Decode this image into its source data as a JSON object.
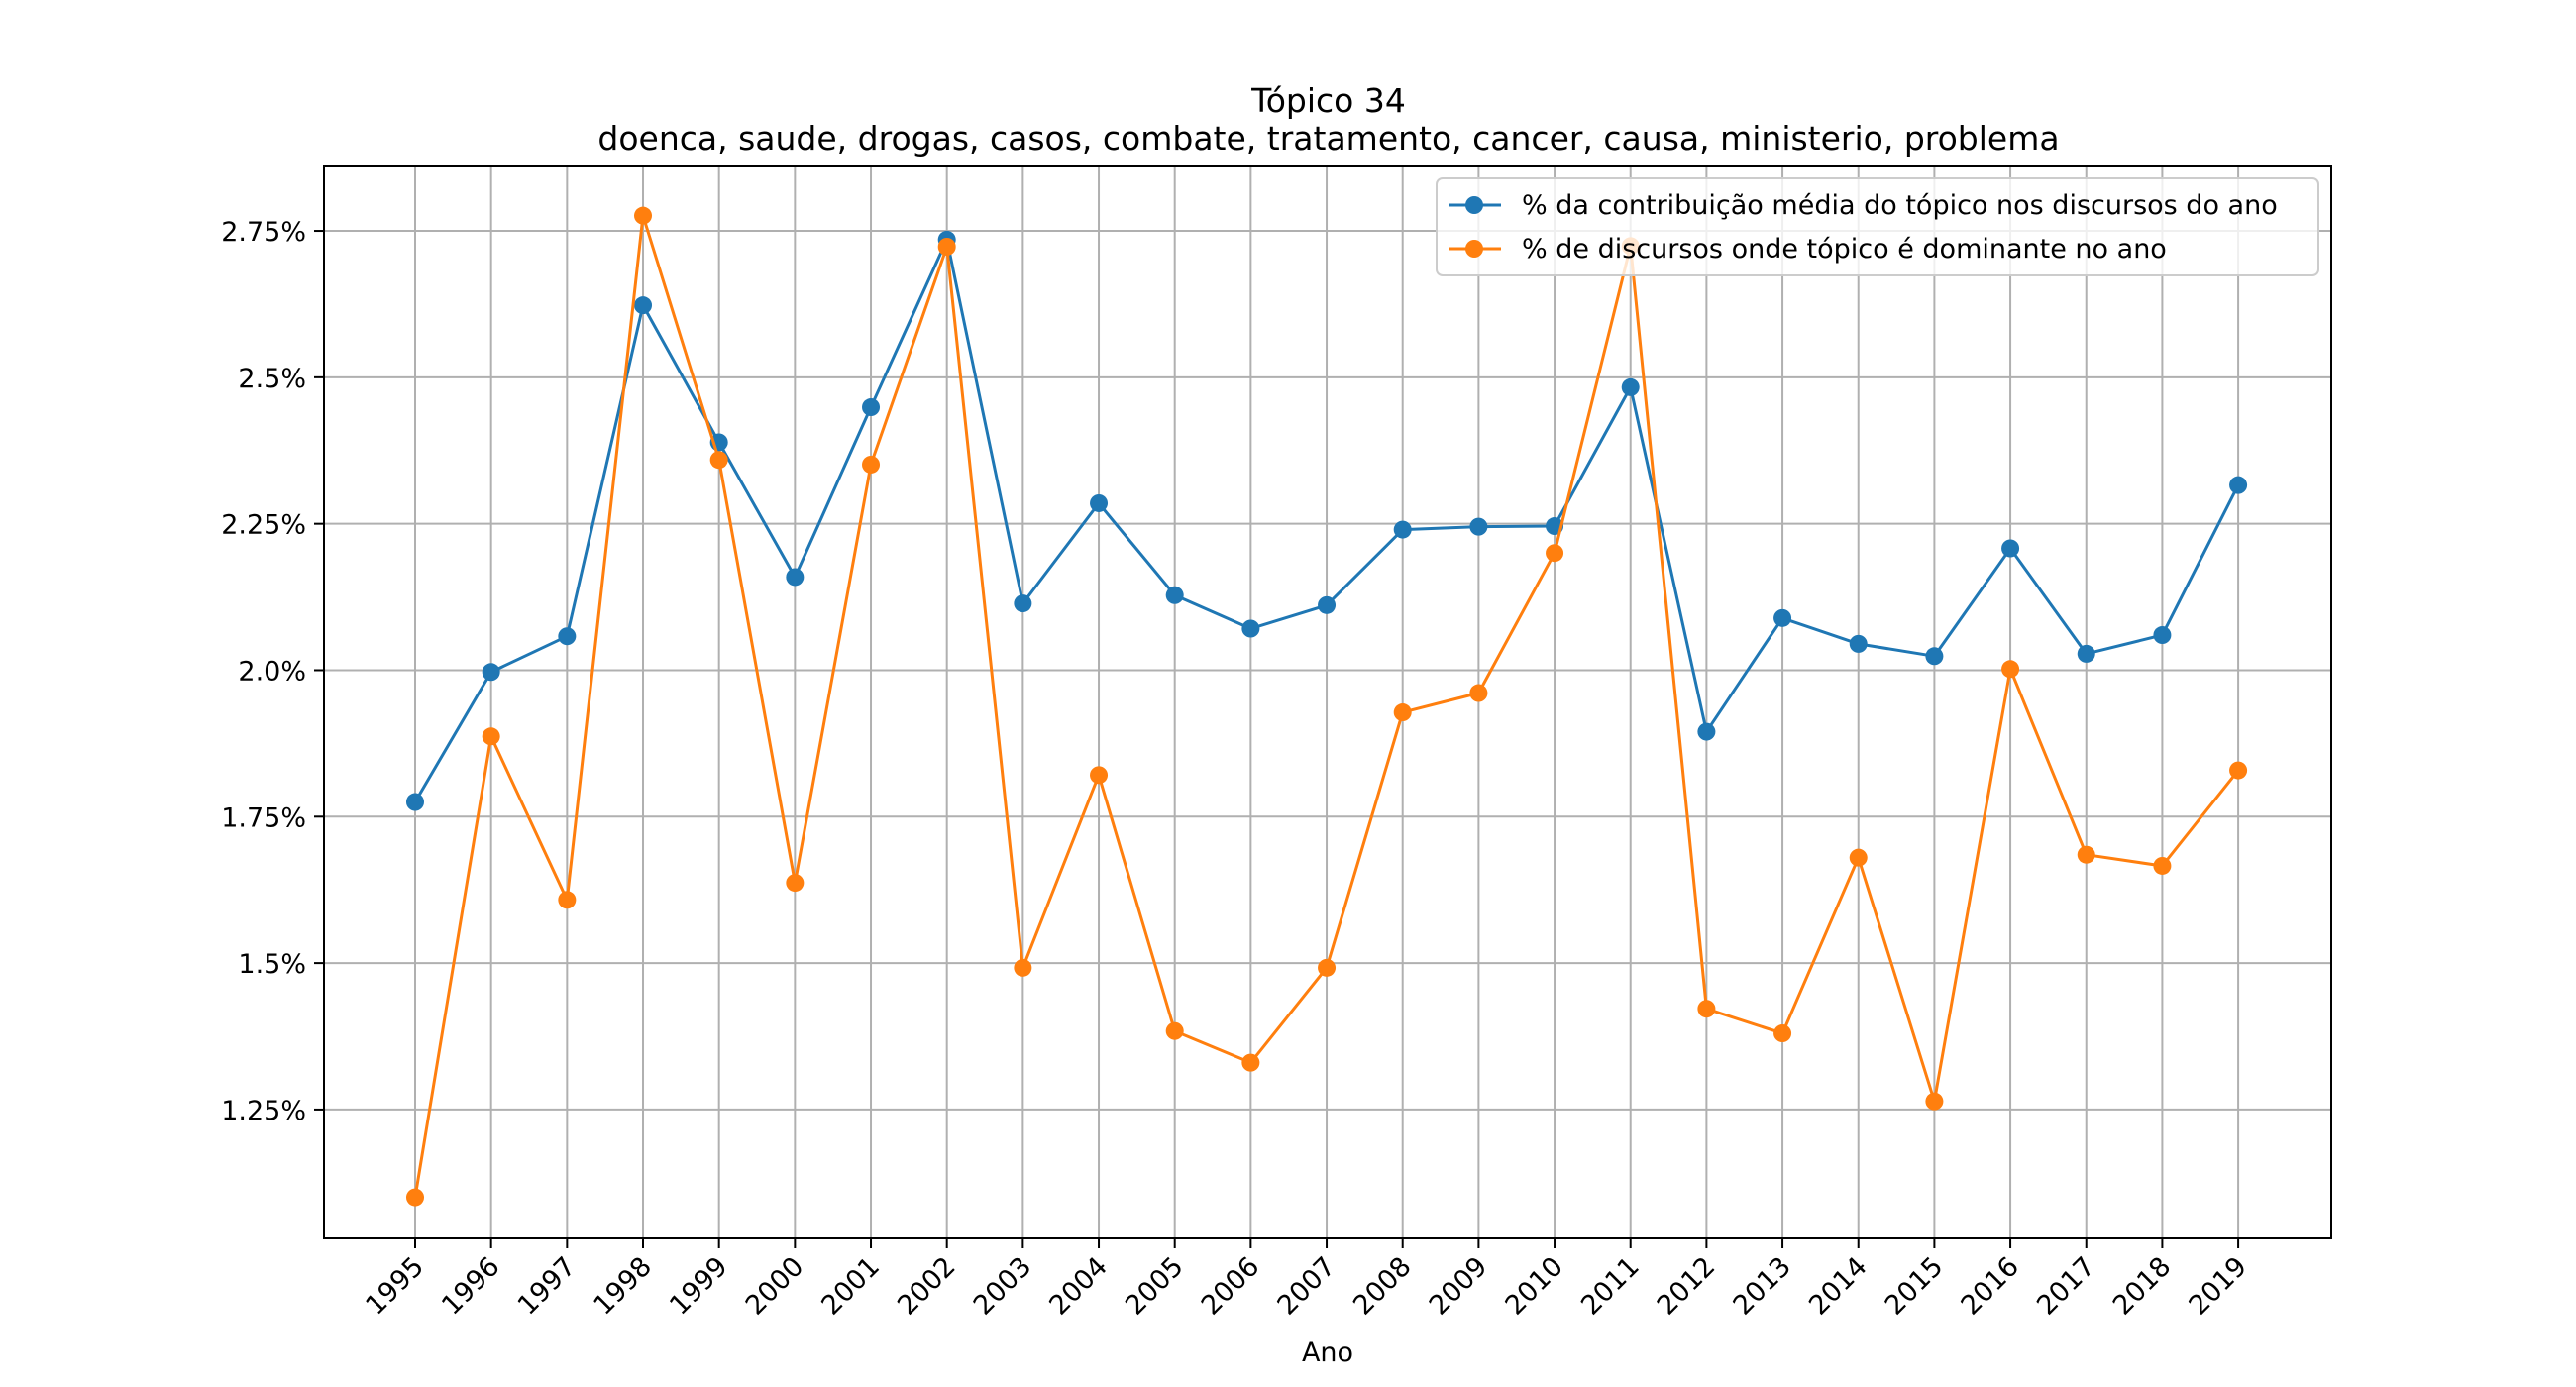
{
  "chart_data": {
    "type": "line",
    "title": "Tópico 34",
    "subtitle": "doenca, saude, drogas, casos, combate, tratamento, cancer, causa, ministerio, problema",
    "xlabel": "Ano",
    "ylabel": "",
    "categories": [
      "1995",
      "1996",
      "1997",
      "1998",
      "1999",
      "2000",
      "2001",
      "2002",
      "2003",
      "2004",
      "2005",
      "2006",
      "2007",
      "2008",
      "2009",
      "2010",
      "2011",
      "2012",
      "2013",
      "2014",
      "2015",
      "2016",
      "2017",
      "2018",
      "2019"
    ],
    "yticks": [
      1.25,
      1.5,
      1.75,
      2.0,
      2.25,
      2.5,
      2.75
    ],
    "ytick_labels": [
      "1.25%",
      "1.5%",
      "1.75%",
      "2.0%",
      "2.25%",
      "2.5%",
      "2.75%"
    ],
    "ylim": [
      1.03,
      2.86
    ],
    "grid": true,
    "legend_position": "top-right",
    "series": [
      {
        "name": "% da contribuição média do tópico nos discursos do ano",
        "color": "#1f77b4",
        "values": [
          1.775,
          1.997,
          2.058,
          2.623,
          2.389,
          2.159,
          2.449,
          2.735,
          2.114,
          2.285,
          2.128,
          2.071,
          2.111,
          2.24,
          2.245,
          2.246,
          2.483,
          1.895,
          2.089,
          2.045,
          2.024,
          2.208,
          2.028,
          2.06,
          2.316
        ]
      },
      {
        "name": "% de discursos onde tópico é dominante no ano",
        "color": "#ff7f0e",
        "values": [
          1.1,
          1.887,
          1.608,
          2.776,
          2.359,
          1.637,
          2.351,
          2.723,
          1.492,
          1.821,
          1.384,
          1.33,
          1.492,
          1.928,
          1.961,
          2.2,
          2.724,
          1.422,
          1.38,
          1.68,
          1.264,
          2.002,
          1.685,
          1.666,
          1.829
        ]
      }
    ]
  }
}
